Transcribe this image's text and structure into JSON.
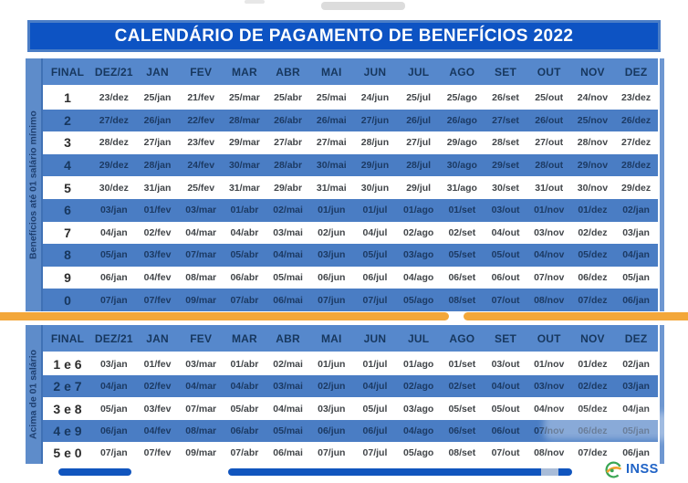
{
  "page": {
    "title": "CALENDÁRIO DE PAGAMENTO DE BENEFÍCIOS 2022"
  },
  "columns": [
    "FINAL",
    "DEZ/21",
    "JAN",
    "FEV",
    "MAR",
    "ABR",
    "MAI",
    "JUN",
    "JUL",
    "AGO",
    "SET",
    "OUT",
    "NOV",
    "DEZ"
  ],
  "tables": [
    {
      "id": "beneficios-ate-01-salario-minimo",
      "side_label": "Benefícios até 01 salário mínimo",
      "rows": [
        {
          "final": "1",
          "dates": [
            "23/dez",
            "25/jan",
            "21/fev",
            "25/mar",
            "25/abr",
            "25/mai",
            "24/jun",
            "25/jul",
            "25/ago",
            "26/set",
            "25/out",
            "24/nov",
            "23/dez"
          ]
        },
        {
          "final": "2",
          "dates": [
            "27/dez",
            "26/jan",
            "22/fev",
            "28/mar",
            "26/abr",
            "26/mai",
            "27/jun",
            "26/jul",
            "26/ago",
            "27/set",
            "26/out",
            "25/nov",
            "26/dez"
          ]
        },
        {
          "final": "3",
          "dates": [
            "28/dez",
            "27/jan",
            "23/fev",
            "29/mar",
            "27/abr",
            "27/mai",
            "28/jun",
            "27/jul",
            "29/ago",
            "28/set",
            "27/out",
            "28/nov",
            "27/dez"
          ]
        },
        {
          "final": "4",
          "dates": [
            "29/dez",
            "28/jan",
            "24/fev",
            "30/mar",
            "28/abr",
            "30/mai",
            "29/jun",
            "28/jul",
            "30/ago",
            "29/set",
            "28/out",
            "29/nov",
            "28/dez"
          ]
        },
        {
          "final": "5",
          "dates": [
            "30/dez",
            "31/jan",
            "25/fev",
            "31/mar",
            "29/abr",
            "31/mai",
            "30/jun",
            "29/jul",
            "31/ago",
            "30/set",
            "31/out",
            "30/nov",
            "29/dez"
          ]
        },
        {
          "final": "6",
          "dates": [
            "03/jan",
            "01/fev",
            "03/mar",
            "01/abr",
            "02/mai",
            "01/jun",
            "01/jul",
            "01/ago",
            "01/set",
            "03/out",
            "01/nov",
            "01/dez",
            "02/jan"
          ]
        },
        {
          "final": "7",
          "dates": [
            "04/jan",
            "02/fev",
            "04/mar",
            "04/abr",
            "03/mai",
            "02/jun",
            "04/jul",
            "02/ago",
            "02/set",
            "04/out",
            "03/nov",
            "02/dez",
            "03/jan"
          ]
        },
        {
          "final": "8",
          "dates": [
            "05/jan",
            "03/fev",
            "07/mar",
            "05/abr",
            "04/mai",
            "03/jun",
            "05/jul",
            "03/ago",
            "05/set",
            "05/out",
            "04/nov",
            "05/dez",
            "04/jan"
          ]
        },
        {
          "final": "9",
          "dates": [
            "06/jan",
            "04/fev",
            "08/mar",
            "06/abr",
            "05/mai",
            "06/jun",
            "06/jul",
            "04/ago",
            "06/set",
            "06/out",
            "07/nov",
            "06/dez",
            "05/jan"
          ]
        },
        {
          "final": "0",
          "dates": [
            "07/jan",
            "07/fev",
            "09/mar",
            "07/abr",
            "06/mai",
            "07/jun",
            "07/jul",
            "05/ago",
            "08/set",
            "07/out",
            "08/nov",
            "07/dez",
            "06/jan"
          ]
        }
      ]
    },
    {
      "id": "acima-de-01-salario",
      "side_label": "Acima de 01 salário",
      "rows": [
        {
          "final": "1 e 6",
          "dates": [
            "03/jan",
            "01/fev",
            "03/mar",
            "01/abr",
            "02/mai",
            "01/jun",
            "01/jul",
            "01/ago",
            "01/set",
            "03/out",
            "01/nov",
            "01/dez",
            "02/jan"
          ]
        },
        {
          "final": "2 e 7",
          "dates": [
            "04/jan",
            "02/fev",
            "04/mar",
            "04/abr",
            "03/mai",
            "02/jun",
            "04/jul",
            "02/ago",
            "02/set",
            "04/out",
            "03/nov",
            "02/dez",
            "03/jan"
          ]
        },
        {
          "final": "3 e 8",
          "dates": [
            "05/jan",
            "03/fev",
            "07/mar",
            "05/abr",
            "04/mai",
            "03/jun",
            "05/jul",
            "03/ago",
            "05/set",
            "05/out",
            "04/nov",
            "05/dez",
            "04/jan"
          ]
        },
        {
          "final": "4 e 9",
          "dates": [
            "06/jan",
            "04/fev",
            "08/mar",
            "06/abr",
            "05/mai",
            "06/jun",
            "06/jul",
            "04/ago",
            "06/set",
            "06/out",
            "07/nov",
            "06/dez",
            "05/jan"
          ]
        },
        {
          "final": "5 e 0",
          "dates": [
            "07/jan",
            "07/fev",
            "09/mar",
            "07/abr",
            "06/mai",
            "07/jun",
            "07/jul",
            "05/ago",
            "08/set",
            "07/out",
            "08/nov",
            "07/dez",
            "06/jan"
          ]
        }
      ]
    }
  ],
  "footer": {
    "logo_text": "INSS"
  },
  "colors": {
    "banner_blue": "#0d53c3",
    "banner_border_blue": "#4a7dc6",
    "header_blue": "#5688cc",
    "row_blue": "#4a7dc4",
    "sidebar_blue": "#5e8cca",
    "accent_orange": "#f3a73a",
    "bar_blue": "#1155be",
    "navy_text": "#17375e",
    "logo_blue": "#2063c6",
    "logo_green": "#3aa655",
    "logo_yellow": "#f0a32e"
  }
}
